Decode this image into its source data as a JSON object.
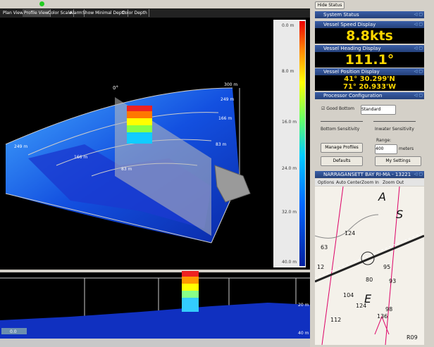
{
  "toolbar": {
    "tabs": [
      "Plan View",
      "Profile View",
      "Color Scale",
      "Alarm",
      "Show Minimal Depth",
      "Color Depth"
    ]
  },
  "view3d": {
    "angle_label": "0°",
    "range_labels": [
      "300 m",
      "249 m",
      "166 m",
      "83 m"
    ],
    "left_labels": [
      "249 m",
      "166 m",
      "83 m"
    ]
  },
  "color_scale": {
    "labels": [
      "0.0 m",
      "8.0 m",
      "16.0 m",
      "24.0 m",
      "32.0 m",
      "40.0 m"
    ]
  },
  "profile": {
    "depth_labels": [
      "20 m",
      "40 m"
    ],
    "left_label": "0.0"
  },
  "status_panel": {
    "hide_button": "Hide Status",
    "system_status": "System Status",
    "speed": {
      "title": "Vessel Speed Display",
      "value": "8.8kts"
    },
    "heading": {
      "title": "Vessel Heading Display",
      "value": "111.1°"
    },
    "position": {
      "title": "Vessel Position Display",
      "lat": "41° 30.299'N",
      "lon": "71° 20.933'W"
    },
    "processor": {
      "title": "Processor Configuration",
      "good_bottom": "Good Bottom",
      "mode": "Standard",
      "bottom_sensitivity": "Bottom Sensitivity",
      "inwater_sensitivity": "Inwater Sensitivity",
      "manage_profiles": "Manage Profiles",
      "range_label": "Range:",
      "range_value": "400",
      "range_unit": "meters",
      "defaults": "Defaults",
      "my_settings": "My Settings"
    },
    "nav_chart": {
      "title": "NARRAGANSETT BAY RI-MA - 13221",
      "tabs": [
        "Options",
        "Auto Center",
        "Zoom In",
        "Zoom Out"
      ],
      "soundings": [
        "124",
        "63",
        "12",
        "104",
        "93",
        "95",
        "80",
        "124",
        "98",
        "112",
        "136",
        "R09"
      ],
      "letters": [
        "A",
        "S",
        "E"
      ]
    }
  }
}
